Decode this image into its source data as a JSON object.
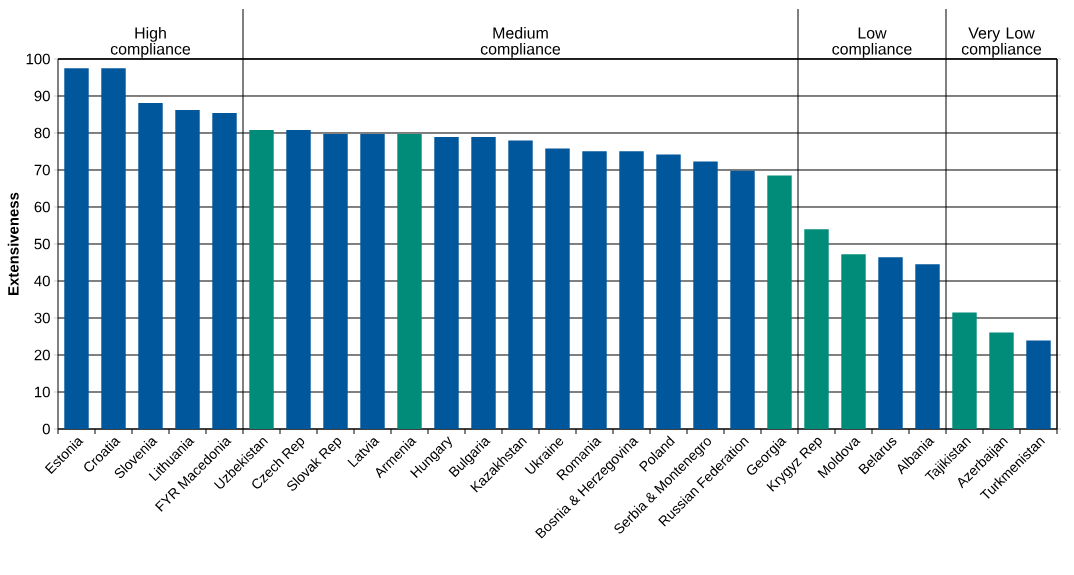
{
  "chart_data": {
    "type": "bar",
    "ylabel": "Extensiveness",
    "categories": [
      "Estonia",
      "Croatia",
      "Slovenia",
      "Lithuania",
      "FYR Macedonia",
      "Uzbekistan",
      "Czech Rep",
      "Slovak Rep",
      "Latvia",
      "Armenia",
      "Hungary",
      "Bulgaria",
      "Kazakhstan",
      "Ukraine",
      "Romania",
      "Bosnia & Herzegovina",
      "Poland",
      "Serbia & Montenegro",
      "Russian Federation",
      "Georgia",
      "Krygyz Rep",
      "Moldova",
      "Belarus",
      "Albania",
      "Tajikistan",
      "Azerbaijan",
      "Turkmenistan"
    ],
    "values": [
      97.5,
      97.5,
      88.1,
      86.2,
      85.4,
      80.8,
      80.8,
      79.7,
      79.7,
      79.7,
      78.9,
      78.9,
      78.0,
      75.8,
      75.1,
      75.1,
      74.2,
      72.3,
      69.8,
      68.5,
      54.0,
      47.2,
      46.4,
      44.5,
      31.5,
      26.1,
      23.9
    ],
    "colors": [
      "#00579b",
      "#00579b",
      "#00579b",
      "#00579b",
      "#00579b",
      "#008c78",
      "#00579b",
      "#00579b",
      "#00579b",
      "#008c78",
      "#00579b",
      "#00579b",
      "#00579b",
      "#00579b",
      "#00579b",
      "#00579b",
      "#00579b",
      "#00579b",
      "#00579b",
      "#008c78",
      "#008c78",
      "#008c78",
      "#00579b",
      "#00579b",
      "#008c78",
      "#008c78",
      "#00579b"
    ],
    "ylim": [
      0,
      100
    ],
    "yticks": [
      0,
      10,
      20,
      30,
      40,
      50,
      60,
      70,
      80,
      90,
      100
    ],
    "grid": "y",
    "annotations": [
      "High compliance",
      "Medium compliance",
      "Low compliance",
      "Very Low compliance"
    ]
  }
}
